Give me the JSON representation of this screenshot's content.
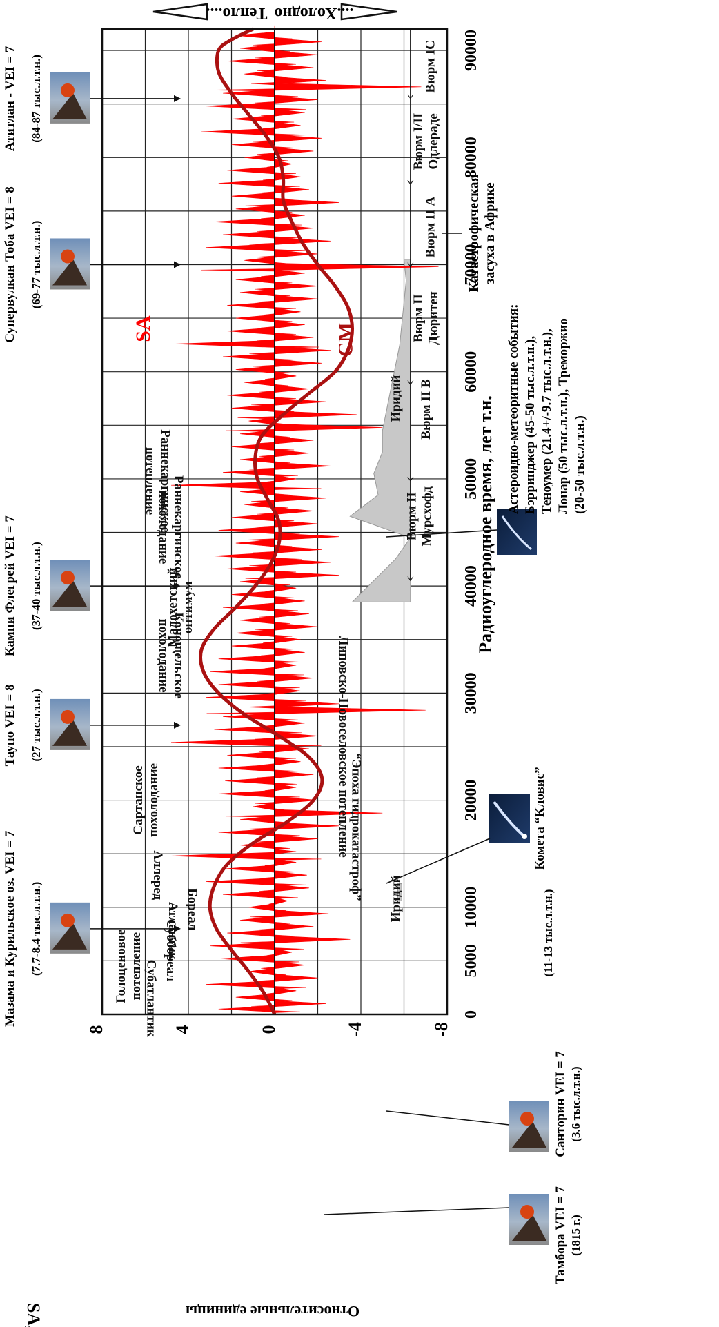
{
  "chart_data": {
    "type": "area",
    "orientation": "rotated-90-clockwise",
    "title": "",
    "xlabel": "Радиоуглеродное время, лет т.н.",
    "ylabel": "Относительные единицы",
    "y_axis_series_label": "SA, CM",
    "xlim": [
      0,
      92000
    ],
    "ylim": [
      -8,
      8
    ],
    "x_ticks": [
      0,
      5000,
      10000,
      20000,
      30000,
      40000,
      50000,
      60000,
      70000,
      80000,
      90000
    ],
    "x_tick_labels": [
      "0",
      "5000",
      "10000",
      "20000",
      "30000",
      "40000",
      "50000",
      "60000",
      "70000",
      "80000",
      "90000"
    ],
    "y_ticks": [
      8,
      4,
      0,
      -4,
      -8
    ],
    "y_tick_labels": [
      "8",
      "4",
      "0",
      "-4",
      "-8"
    ],
    "grid": true,
    "arrow_warm": "Тепло....",
    "arrow_cold": "....Холодно",
    "series": [
      {
        "name": "SA",
        "style": "filled spikes",
        "color": "#ff0000",
        "points": [
          [
            0,
            0
          ],
          [
            500,
            2.6
          ],
          [
            1000,
            -2.4
          ],
          [
            1600,
            1.8
          ],
          [
            2200,
            -1.0
          ],
          [
            2800,
            3.2
          ],
          [
            3400,
            -2.0
          ],
          [
            4000,
            1.2
          ],
          [
            4600,
            -1.4
          ],
          [
            5200,
            2.5
          ],
          [
            5800,
            -0.8
          ],
          [
            6400,
            3.0
          ],
          [
            7000,
            -3.5
          ],
          [
            7600,
            2.2
          ],
          [
            8200,
            -1.8
          ],
          [
            8800,
            1.6
          ],
          [
            9400,
            -2.5
          ],
          [
            10000,
            1.2
          ],
          [
            10600,
            -0.6
          ],
          [
            11200,
            2.4
          ],
          [
            11800,
            -1.6
          ],
          [
            12400,
            3.2
          ],
          [
            13000,
            -1.5
          ],
          [
            13600,
            2.3
          ],
          [
            14200,
            -1.0
          ],
          [
            14800,
            4.8
          ],
          [
            15200,
            -1.0
          ],
          [
            15800,
            1.6
          ],
          [
            16400,
            -2.0
          ],
          [
            17000,
            2.6
          ],
          [
            17600,
            -3.0
          ],
          [
            18200,
            1.6
          ],
          [
            18800,
            -5.0
          ],
          [
            19400,
            1.0
          ],
          [
            20000,
            -2.0
          ],
          [
            20600,
            2.6
          ],
          [
            21200,
            -1.0
          ],
          [
            21800,
            2.3
          ],
          [
            22400,
            -1.8
          ],
          [
            23000,
            2.6
          ],
          [
            23600,
            -1.2
          ],
          [
            24200,
            2.2
          ],
          [
            24800,
            -1.6
          ],
          [
            25400,
            4.8
          ],
          [
            26000,
            -2.0
          ],
          [
            26600,
            2.8
          ],
          [
            27200,
            -1.4
          ],
          [
            27800,
            2.4
          ],
          [
            28400,
            -7.0
          ],
          [
            29000,
            -3.0
          ],
          [
            29600,
            3.2
          ],
          [
            30200,
            -1.2
          ],
          [
            30800,
            2.6
          ],
          [
            31400,
            -1.8
          ],
          [
            32000,
            3.0
          ],
          [
            32600,
            -1.0
          ],
          [
            33200,
            2.6
          ],
          [
            33800,
            -1.4
          ],
          [
            34400,
            2.0
          ],
          [
            35000,
            -1.2
          ],
          [
            35600,
            1.8
          ],
          [
            36200,
            -2.0
          ],
          [
            36800,
            1.6
          ],
          [
            37400,
            -1.6
          ],
          [
            38000,
            2.4
          ],
          [
            38600,
            -1.4
          ],
          [
            39200,
            2.0
          ],
          [
            39800,
            -1.0
          ],
          [
            40400,
            1.6
          ],
          [
            41000,
            -3.0
          ],
          [
            41600,
            2.2
          ],
          [
            42200,
            -2.6
          ],
          [
            42800,
            2.8
          ],
          [
            43400,
            -2.2
          ],
          [
            44000,
            1.8
          ],
          [
            44600,
            -3.0
          ],
          [
            45200,
            2.6
          ],
          [
            45800,
            -2.0
          ],
          [
            46400,
            2.0
          ],
          [
            47000,
            -1.8
          ],
          [
            47600,
            1.4
          ],
          [
            48200,
            -2.4
          ],
          [
            48800,
            1.6
          ],
          [
            49400,
            4.8
          ],
          [
            50000,
            -1.0
          ],
          [
            50600,
            2.4
          ],
          [
            51200,
            -2.6
          ],
          [
            51800,
            1.6
          ],
          [
            52400,
            -1.6
          ],
          [
            53000,
            2.0
          ],
          [
            53600,
            -1.8
          ],
          [
            54200,
            1.6
          ],
          [
            54800,
            -5.0
          ],
          [
            55400,
            1.2
          ],
          [
            56000,
            -3.8
          ],
          [
            56600,
            2.0
          ],
          [
            57200,
            -2.4
          ],
          [
            57800,
            2.2
          ],
          [
            58400,
            -1.6
          ],
          [
            59000,
            1.4
          ],
          [
            59600,
            -1.0
          ],
          [
            60200,
            1.8
          ],
          [
            60800,
            -2.2
          ],
          [
            61400,
            2.4
          ],
          [
            62000,
            -2.6
          ],
          [
            62600,
            4.6
          ],
          [
            63200,
            -1.8
          ],
          [
            63800,
            2.2
          ],
          [
            64400,
            -1.4
          ],
          [
            65000,
            1.8
          ],
          [
            65600,
            -1.2
          ],
          [
            66200,
            2.2
          ],
          [
            66800,
            -2.0
          ],
          [
            67400,
            1.6
          ],
          [
            68000,
            -2.0
          ],
          [
            68600,
            1.8
          ],
          [
            69200,
            -1.4
          ],
          [
            69800,
            -7.6
          ],
          [
            70400,
            1.4
          ],
          [
            71000,
            -2.0
          ],
          [
            71600,
            3.2
          ],
          [
            72200,
            -2.6
          ],
          [
            72800,
            2.4
          ],
          [
            73400,
            -1.8
          ],
          [
            74000,
            2.8
          ],
          [
            74600,
            -1.4
          ],
          [
            75200,
            1.8
          ],
          [
            75800,
            -3.0
          ],
          [
            76400,
            2.0
          ],
          [
            77000,
            -1.6
          ],
          [
            77600,
            2.6
          ],
          [
            78200,
            -1.2
          ],
          [
            78800,
            2.2
          ],
          [
            79400,
            -0.8
          ],
          [
            80000,
            1.4
          ],
          [
            80600,
            -1.8
          ],
          [
            81200,
            2.0
          ],
          [
            81800,
            -2.2
          ],
          [
            82400,
            3.4
          ],
          [
            83000,
            -1.2
          ],
          [
            83600,
            2.0
          ],
          [
            84200,
            -1.4
          ],
          [
            84800,
            3.2
          ],
          [
            85400,
            -2.0
          ],
          [
            86000,
            2.4
          ],
          [
            86600,
            -6.8
          ],
          [
            87200,
            -2.4
          ],
          [
            87800,
            1.4
          ],
          [
            88400,
            -1.8
          ],
          [
            89000,
            2.2
          ],
          [
            89600,
            -2.0
          ],
          [
            90200,
            1.6
          ],
          [
            90800,
            -2.2
          ],
          [
            91400,
            1.8
          ],
          [
            92000,
            0
          ]
        ]
      },
      {
        "name": "CM",
        "style": "smooth line",
        "color": "#aa1111",
        "points": [
          [
            0,
            0
          ],
          [
            2000,
            0.5
          ],
          [
            4000,
            1.2
          ],
          [
            6000,
            2.0
          ],
          [
            8000,
            2.7
          ],
          [
            10000,
            3.0
          ],
          [
            12000,
            2.8
          ],
          [
            14000,
            2.2
          ],
          [
            16000,
            1.0
          ],
          [
            18000,
            -0.6
          ],
          [
            20000,
            -1.8
          ],
          [
            22000,
            -2.2
          ],
          [
            24000,
            -1.6
          ],
          [
            26000,
            -0.2
          ],
          [
            28000,
            1.4
          ],
          [
            30000,
            2.6
          ],
          [
            32000,
            3.3
          ],
          [
            34000,
            3.4
          ],
          [
            36000,
            2.8
          ],
          [
            38000,
            1.8
          ],
          [
            40000,
            0.9
          ],
          [
            42000,
            0.2
          ],
          [
            44000,
            -0.2
          ],
          [
            46000,
            -0.2
          ],
          [
            48000,
            0.3
          ],
          [
            50000,
            0.8
          ],
          [
            52000,
            0.9
          ],
          [
            54000,
            0.6
          ],
          [
            56000,
            -0.4
          ],
          [
            58000,
            -1.6
          ],
          [
            60000,
            -2.8
          ],
          [
            62000,
            -3.4
          ],
          [
            64000,
            -3.6
          ],
          [
            66000,
            -3.4
          ],
          [
            68000,
            -2.8
          ],
          [
            70000,
            -2.0
          ],
          [
            72000,
            -1.3
          ],
          [
            74000,
            -0.8
          ],
          [
            76000,
            -0.4
          ],
          [
            78000,
            -0.4
          ],
          [
            80000,
            -0.2
          ],
          [
            82000,
            0.4
          ],
          [
            84000,
            1.2
          ],
          [
            86000,
            2.0
          ],
          [
            88000,
            2.6
          ],
          [
            90000,
            2.6
          ],
          [
            91000,
            2.0
          ],
          [
            92000,
            1.0
          ]
        ]
      },
      {
        "name": "Иридий",
        "style": "grey filled band",
        "color": "#c8c8c8",
        "points": [
          [
            38500,
            -3.6
          ],
          [
            40500,
            -4.6
          ],
          [
            42500,
            -5.6
          ],
          [
            44500,
            -6.3
          ],
          [
            46500,
            -3.5
          ],
          [
            48500,
            -4.8
          ],
          [
            50500,
            -4.6
          ],
          [
            52500,
            -5.0
          ],
          [
            54500,
            -5.0
          ],
          [
            56500,
            -5.2
          ],
          [
            58500,
            -5.4
          ],
          [
            60500,
            -5.6
          ],
          [
            62500,
            -5.8
          ],
          [
            64500,
            -5.9
          ],
          [
            66500,
            -6.0
          ],
          [
            68500,
            -6.1
          ],
          [
            70500,
            -6.0
          ]
        ],
        "baseline": -6.3
      }
    ],
    "annotations": [
      {
        "text": "Голоценовое потепление",
        "x": 4500,
        "y": 6.6
      },
      {
        "text": "Субатлантик",
        "x": 1500,
        "y": 5.9
      },
      {
        "text": "Суббореал",
        "x": 6000,
        "y": 5.0
      },
      {
        "text": "Атлантик",
        "x": 7800,
        "y": 4.9
      },
      {
        "text": "Бореал",
        "x": 9800,
        "y": 4.0
      },
      {
        "text": "Аллеред",
        "x": 13000,
        "y": 5.6
      },
      {
        "text": "Сартанское похолодание",
        "x": 20000,
        "y": 5.8
      },
      {
        "text": "Липовско-Новоселовское потепление",
        "x": 25000,
        "y": -3.0
      },
      {
        "text": "Конощельское похолодание",
        "x": 33500,
        "y": 5.0
      },
      {
        "text": "Малохетский оптимум",
        "x": 38000,
        "y": 4.2
      },
      {
        "text": "Раннекаргинское похолодание",
        "x": 45500,
        "y": 5.0
      },
      {
        "text": "Раннекаргинское потепление",
        "x": 49800,
        "y": 5.6
      },
      {
        "text": "Вюрм II Мурсхофд",
        "x": 46500,
        "y": -6.9
      },
      {
        "text": "Вюрм II В",
        "x": 56500,
        "y": -7.2
      },
      {
        "text": "Вюрм II Дюритен",
        "x": 65000,
        "y": -7.2
      },
      {
        "text": "Вюрм II А",
        "x": 73500,
        "y": -7.4
      },
      {
        "text": "Вюрм I/II Одлераде",
        "x": 81500,
        "y": -7.2
      },
      {
        "text": "Вюрм IC",
        "x": 88500,
        "y": -7.4
      },
      {
        "text": "SA",
        "x": 64000,
        "y": 5.8
      },
      {
        "text": "CM",
        "x": 63000,
        "y": -3.6
      },
      {
        "text": "Иридий",
        "x": 57500,
        "y": -5.8
      },
      {
        "text": "Иридий",
        "x": 10800,
        "y": -5.8
      },
      {
        "text": "“Эпоха гидрокатастроф”",
        "x": 17500,
        "y": -3.6
      }
    ],
    "events": [
      {
        "label": "Тамбора VEI = 7",
        "detail": "(1815 г.)",
        "x": 200
      },
      {
        "label": "Мазама и Курильское оз. VEI = 7",
        "detail": "(7.7-8.4 тыс.л.т.н.)",
        "x": 8000
      },
      {
        "label": "Таупо VEI = 8",
        "detail": "(27 тыс.л.т.н.)",
        "x": 27000
      },
      {
        "label": "Кампи Флегрей VEI = 7",
        "detail": "(37-40 тыс.л.т.н.)",
        "x": 40000
      },
      {
        "label": "Супервулкан Тоба VEI = 8",
        "detail": "(69-77 тыс.л.т.н.)",
        "x": 70000
      },
      {
        "label": "Атитлан - VEI = 7",
        "detail": "(84-87 тыс.л.т.н.)",
        "x": 85500
      },
      {
        "label": "Санторин VEI = 7",
        "detail": "(3.6 тыс.л.т.н.)",
        "x": 5000
      },
      {
        "label": "Комета “Кловис”",
        "detail": "(11-13 тыс.л.т.н.)",
        "x": 12000
      }
    ],
    "drought_note": [
      "Катастрофическая",
      "засуха в Африке"
    ],
    "asteroid_note": [
      "Астероидно-метеоритные события:",
      "Бэрринджер (45-50 тыс.л.т.н.),",
      "Теноумер (21.4+/-9.7 тыс.л.т.н.),",
      "Лонар (50 тыс.л.т.н.), Треморжио",
      "(20-50 тыс.л.т.н.)"
    ]
  }
}
